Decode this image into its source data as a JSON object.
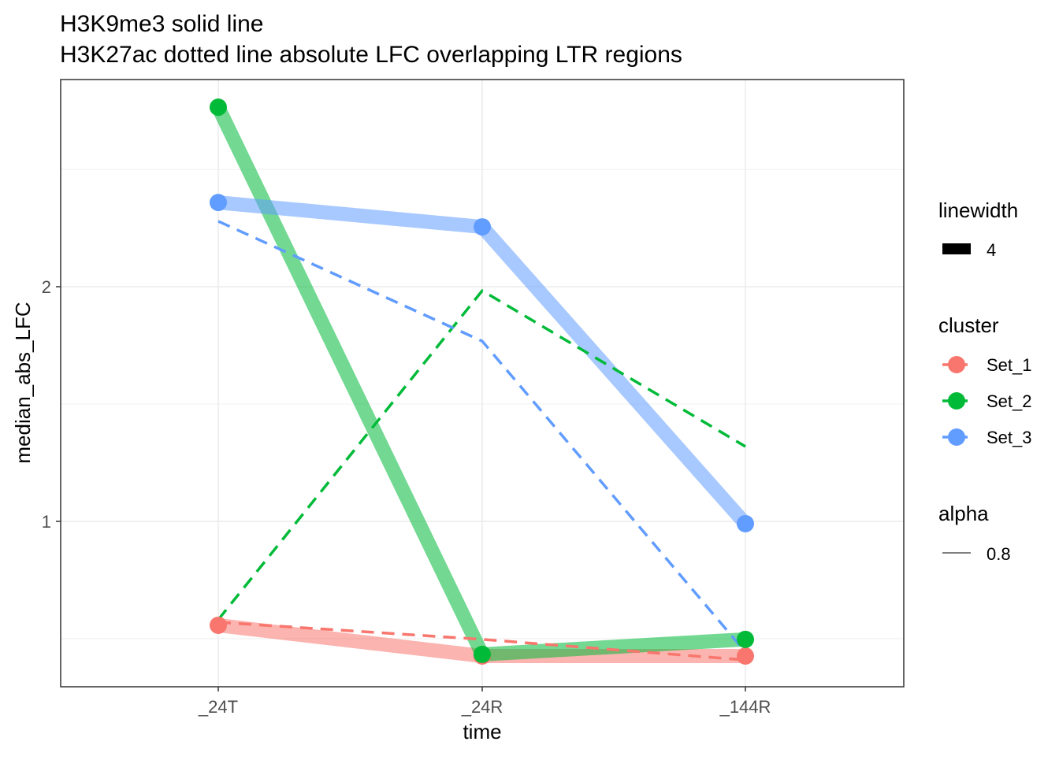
{
  "chart_data": {
    "type": "line",
    "title": [
      "H3K9me3 solid line",
      "H3K27ac dotted line absolute LFC overlapping LTR regions"
    ],
    "xlabel": "time",
    "ylabel": "median_abs_LFC",
    "categories": [
      "_24T",
      "_24R",
      "_144R"
    ],
    "ylim": [
      0.295,
      2.883
    ],
    "yticks": [
      1,
      2
    ],
    "ytick_labels": [
      "1",
      "2"
    ],
    "grid": true,
    "colors": {
      "Set_1": "#F8766D",
      "Set_2": "#00BA38",
      "Set_3": "#619CFF"
    },
    "series": [
      {
        "name": "Set_1",
        "mark": "H3K9me3",
        "style": "solid",
        "values": [
          0.557,
          0.426,
          0.426
        ]
      },
      {
        "name": "Set_2",
        "mark": "H3K9me3",
        "style": "solid",
        "values": [
          2.765,
          0.433,
          0.497
        ]
      },
      {
        "name": "Set_3",
        "mark": "H3K9me3",
        "style": "solid",
        "values": [
          2.359,
          2.255,
          0.99
        ]
      },
      {
        "name": "Set_1",
        "mark": "H3K27ac",
        "style": "dashed",
        "values": [
          0.57,
          0.497,
          0.409
        ]
      },
      {
        "name": "Set_2",
        "mark": "H3K27ac",
        "style": "dashed",
        "values": [
          0.581,
          1.983,
          1.319
        ]
      },
      {
        "name": "Set_3",
        "mark": "H3K27ac",
        "style": "dashed",
        "values": [
          2.279,
          1.768,
          0.443
        ]
      }
    ],
    "legend": {
      "placement": "right",
      "linewidth": {
        "title": "linewidth",
        "label": "4"
      },
      "cluster": {
        "title": "cluster",
        "labels": [
          "Set_1",
          "Set_2",
          "Set_3"
        ]
      },
      "alpha": {
        "title": "alpha",
        "label": "0.8"
      }
    }
  }
}
